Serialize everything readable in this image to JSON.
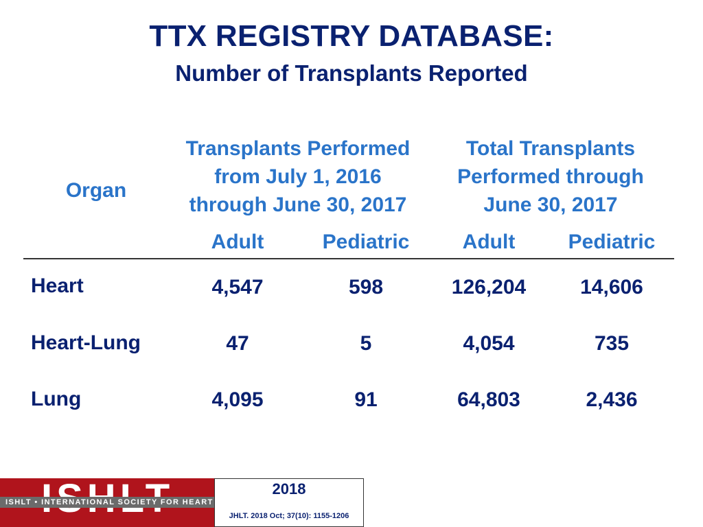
{
  "title": "TTX REGISTRY DATABASE:",
  "subtitle": "Number of Transplants Reported",
  "table": {
    "organ_header": "Organ",
    "group_headers": [
      {
        "line1": "Transplants Performed",
        "line2": "from July 1, 2016",
        "line3": "through June 30, 2017"
      },
      {
        "line1": "Total Transplants",
        "line2": "Performed through",
        "line3": "June 30, 2017"
      }
    ],
    "sub_headers": [
      "Adult",
      "Pediatric",
      "Adult",
      "Pediatric"
    ],
    "rows": [
      {
        "organ": "Heart",
        "values": [
          "4,547",
          "598",
          "126,204",
          "14,606"
        ]
      },
      {
        "organ": "Heart-Lung",
        "values": [
          "47",
          "5",
          "4,054",
          "735"
        ]
      },
      {
        "organ": "Lung",
        "values": [
          "4,095",
          "91",
          "64,803",
          "2,436"
        ]
      }
    ]
  },
  "footer": {
    "logo": "ISHLT",
    "society": "ISHLT • INTERNATIONAL SOCIETY FOR HEART AND LUNG TRANSPLANTATION",
    "year": "2018",
    "citation": "JHLT. 2018 Oct; 37(10): 1155-1206"
  },
  "colors": {
    "title": "#0a2170",
    "header": "#2a74c9",
    "logo_red": "#b0141c"
  }
}
